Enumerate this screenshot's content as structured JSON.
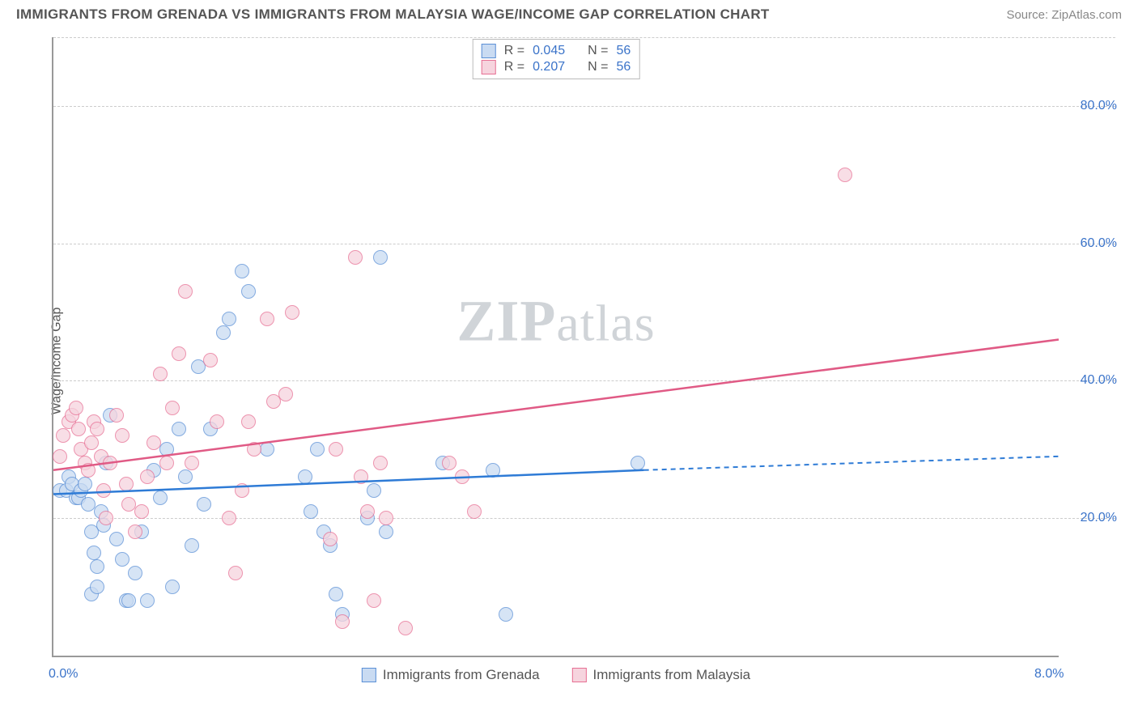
{
  "header": {
    "title": "IMMIGRANTS FROM GRENADA VS IMMIGRANTS FROM MALAYSIA WAGE/INCOME GAP CORRELATION CHART",
    "source": "Source: ZipAtlas.com"
  },
  "chart": {
    "type": "scatter",
    "ylabel": "Wage/Income Gap",
    "xlim": [
      0,
      8
    ],
    "ylim": [
      0,
      90
    ],
    "xticks": [
      {
        "v": 0,
        "label": "0.0%"
      },
      {
        "v": 8,
        "label": "8.0%"
      }
    ],
    "yticks": [
      {
        "v": 20,
        "label": "20.0%"
      },
      {
        "v": 40,
        "label": "40.0%"
      },
      {
        "v": 60,
        "label": "60.0%"
      },
      {
        "v": 80,
        "label": "80.0%"
      }
    ],
    "grid_color": "#cccccc",
    "axis_color": "#999999",
    "background_color": "#ffffff",
    "marker_radius": 9,
    "marker_opacity": 0.75,
    "watermark": {
      "bold": "ZIP",
      "rest": "atlas"
    },
    "series": [
      {
        "id": "grenada",
        "label": "Immigrants from Grenada",
        "fill": "#c9dbf2",
        "stroke": "#5a8fd6",
        "line_color": "#2e7bd6",
        "r": "0.045",
        "n": "56",
        "trend": {
          "x1": 0,
          "y1": 23.5,
          "x2_solid": 4.7,
          "y2_solid": 27,
          "x2": 8,
          "y2": 29
        },
        "points": [
          [
            0.05,
            24
          ],
          [
            0.1,
            24
          ],
          [
            0.12,
            26
          ],
          [
            0.15,
            25
          ],
          [
            0.18,
            23
          ],
          [
            0.2,
            23
          ],
          [
            0.22,
            24
          ],
          [
            0.25,
            25
          ],
          [
            0.28,
            22
          ],
          [
            0.3,
            18
          ],
          [
            0.32,
            15
          ],
          [
            0.35,
            13
          ],
          [
            0.38,
            21
          ],
          [
            0.4,
            19
          ],
          [
            0.42,
            28
          ],
          [
            0.45,
            35
          ],
          [
            0.3,
            9
          ],
          [
            0.35,
            10
          ],
          [
            0.5,
            17
          ],
          [
            0.55,
            14
          ],
          [
            0.58,
            8
          ],
          [
            0.6,
            8
          ],
          [
            0.65,
            12
          ],
          [
            0.7,
            18
          ],
          [
            0.75,
            8
          ],
          [
            0.8,
            27
          ],
          [
            0.85,
            23
          ],
          [
            0.9,
            30
          ],
          [
            0.95,
            10
          ],
          [
            1.0,
            33
          ],
          [
            1.05,
            26
          ],
          [
            1.1,
            16
          ],
          [
            1.15,
            42
          ],
          [
            1.2,
            22
          ],
          [
            1.25,
            33
          ],
          [
            1.35,
            47
          ],
          [
            1.4,
            49
          ],
          [
            1.5,
            56
          ],
          [
            1.55,
            53
          ],
          [
            1.7,
            30
          ],
          [
            2.0,
            26
          ],
          [
            2.05,
            21
          ],
          [
            2.1,
            30
          ],
          [
            2.15,
            18
          ],
          [
            2.2,
            16
          ],
          [
            2.25,
            9
          ],
          [
            2.3,
            6
          ],
          [
            2.5,
            20
          ],
          [
            2.55,
            24
          ],
          [
            2.6,
            58
          ],
          [
            2.65,
            18
          ],
          [
            3.1,
            28
          ],
          [
            3.6,
            6
          ],
          [
            3.5,
            27
          ],
          [
            4.65,
            28
          ]
        ]
      },
      {
        "id": "malaysia",
        "label": "Immigrants from Malaysia",
        "fill": "#f6d4de",
        "stroke": "#e76f94",
        "line_color": "#e05a85",
        "r": "0.207",
        "n": "56",
        "trend": {
          "x1": 0,
          "y1": 27,
          "x2_solid": 8,
          "y2_solid": 46,
          "x2": 8,
          "y2": 46
        },
        "points": [
          [
            0.05,
            29
          ],
          [
            0.08,
            32
          ],
          [
            0.12,
            34
          ],
          [
            0.15,
            35
          ],
          [
            0.18,
            36
          ],
          [
            0.2,
            33
          ],
          [
            0.22,
            30
          ],
          [
            0.25,
            28
          ],
          [
            0.28,
            27
          ],
          [
            0.3,
            31
          ],
          [
            0.32,
            34
          ],
          [
            0.35,
            33
          ],
          [
            0.38,
            29
          ],
          [
            0.4,
            24
          ],
          [
            0.42,
            20
          ],
          [
            0.45,
            28
          ],
          [
            0.5,
            35
          ],
          [
            0.55,
            32
          ],
          [
            0.58,
            25
          ],
          [
            0.6,
            22
          ],
          [
            0.65,
            18
          ],
          [
            0.7,
            21
          ],
          [
            0.75,
            26
          ],
          [
            0.8,
            31
          ],
          [
            0.85,
            41
          ],
          [
            0.9,
            28
          ],
          [
            0.95,
            36
          ],
          [
            1.0,
            44
          ],
          [
            1.05,
            53
          ],
          [
            1.1,
            28
          ],
          [
            1.25,
            43
          ],
          [
            1.3,
            34
          ],
          [
            1.4,
            20
          ],
          [
            1.45,
            12
          ],
          [
            1.5,
            24
          ],
          [
            1.55,
            34
          ],
          [
            1.6,
            30
          ],
          [
            1.7,
            49
          ],
          [
            1.75,
            37
          ],
          [
            1.85,
            38
          ],
          [
            1.9,
            50
          ],
          [
            2.2,
            17
          ],
          [
            2.25,
            30
          ],
          [
            2.3,
            5
          ],
          [
            2.4,
            58
          ],
          [
            2.45,
            26
          ],
          [
            2.5,
            21
          ],
          [
            2.55,
            8
          ],
          [
            2.6,
            28
          ],
          [
            2.65,
            20
          ],
          [
            2.8,
            4
          ],
          [
            3.15,
            28
          ],
          [
            3.25,
            26
          ],
          [
            3.35,
            21
          ],
          [
            6.3,
            70
          ]
        ]
      }
    ],
    "legend_top": {
      "r_label": "R =",
      "n_label": "N ="
    }
  }
}
